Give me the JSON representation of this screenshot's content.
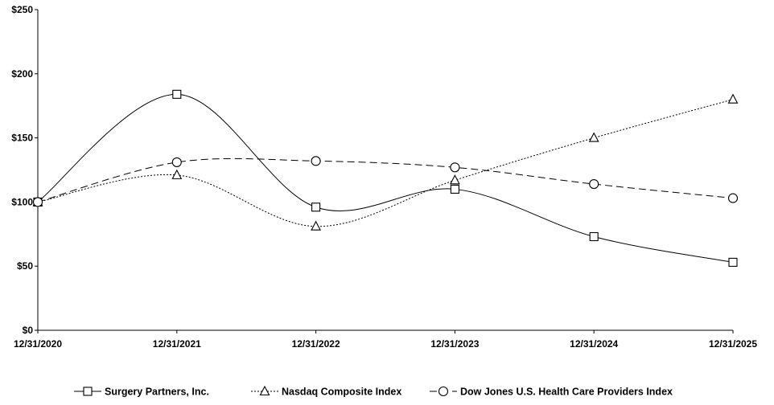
{
  "chart_data": {
    "type": "line",
    "title": "",
    "xlabel": "",
    "ylabel": "",
    "categories": [
      "12/31/2020",
      "12/31/2021",
      "12/31/2022",
      "12/31/2023",
      "12/31/2024",
      "12/31/2025"
    ],
    "y_ticks": [
      "$0",
      "$50",
      "$100",
      "$150",
      "$200",
      "$250"
    ],
    "ylim": [
      0,
      250
    ],
    "grid": false,
    "legend_position": "bottom",
    "series": [
      {
        "name": "Surgery Partners, Inc.",
        "marker": "square",
        "dash": "solid",
        "values": [
          100,
          184,
          96,
          110,
          73,
          53
        ]
      },
      {
        "name": "Nasdaq Composite Index",
        "marker": "triangle",
        "dash": "dotted",
        "values": [
          100,
          121,
          81,
          117,
          150,
          180
        ]
      },
      {
        "name": "Dow Jones U.S. Health Care Providers Index",
        "marker": "circle",
        "dash": "dashed",
        "values": [
          100,
          131,
          132,
          127,
          114,
          103
        ]
      }
    ]
  }
}
